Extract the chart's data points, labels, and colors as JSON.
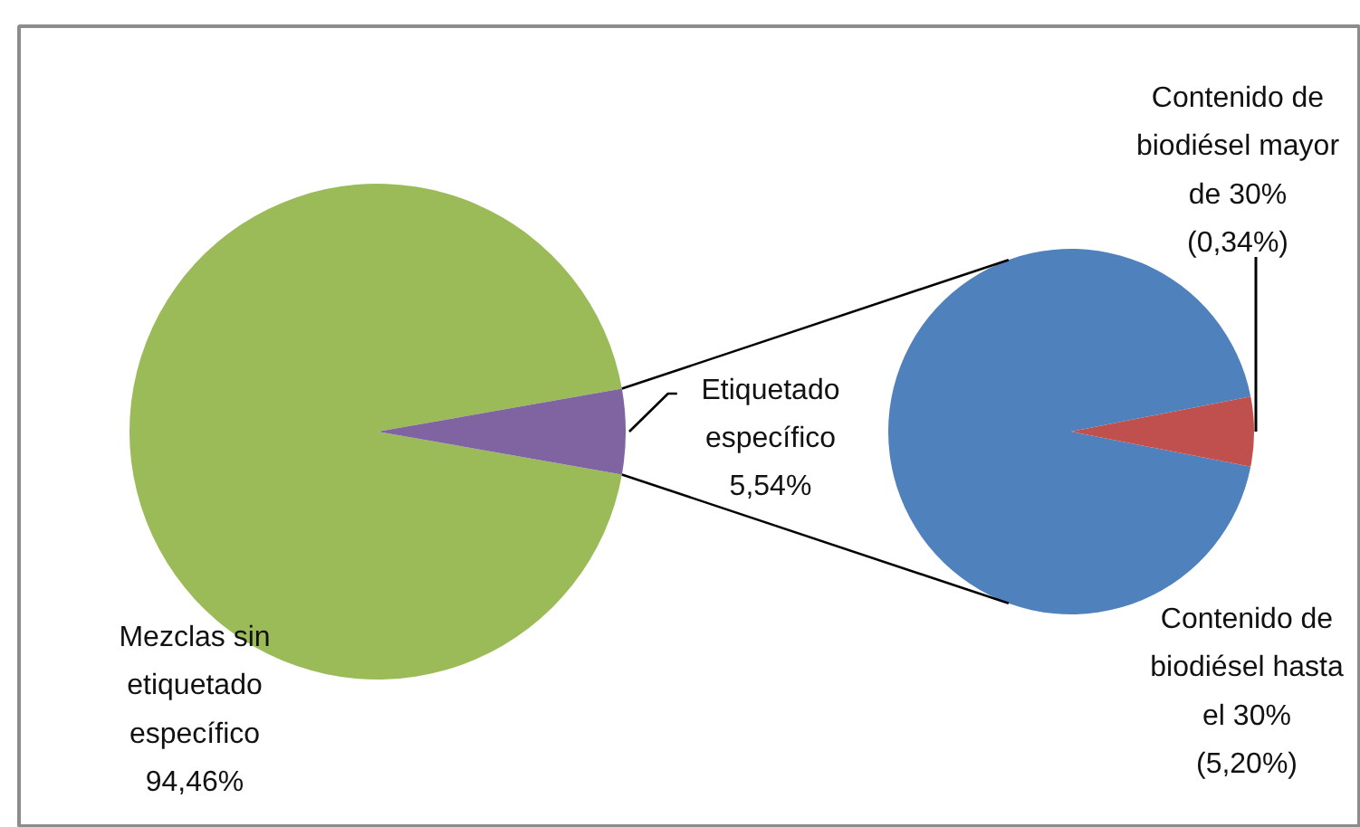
{
  "chart_data": [
    {
      "type": "pie",
      "categories": [
        "Mezclas sin etiquetado específico",
        "Etiquetado específico"
      ],
      "values": [
        94.46,
        5.54
      ],
      "colors": [
        "#9bbb59",
        "#8064a2"
      ],
      "value_labels": [
        "94,46%",
        "5,54%"
      ]
    },
    {
      "type": "pie",
      "categories": [
        "Contenido de biodiésel hasta el 30%",
        "Contenido de biodiésel mayor de 30%"
      ],
      "values": [
        5.2,
        0.34
      ],
      "colors": [
        "#4f81bd",
        "#c0504d"
      ],
      "value_labels": [
        "(5,20%)",
        "(0,34%)"
      ]
    }
  ]
}
